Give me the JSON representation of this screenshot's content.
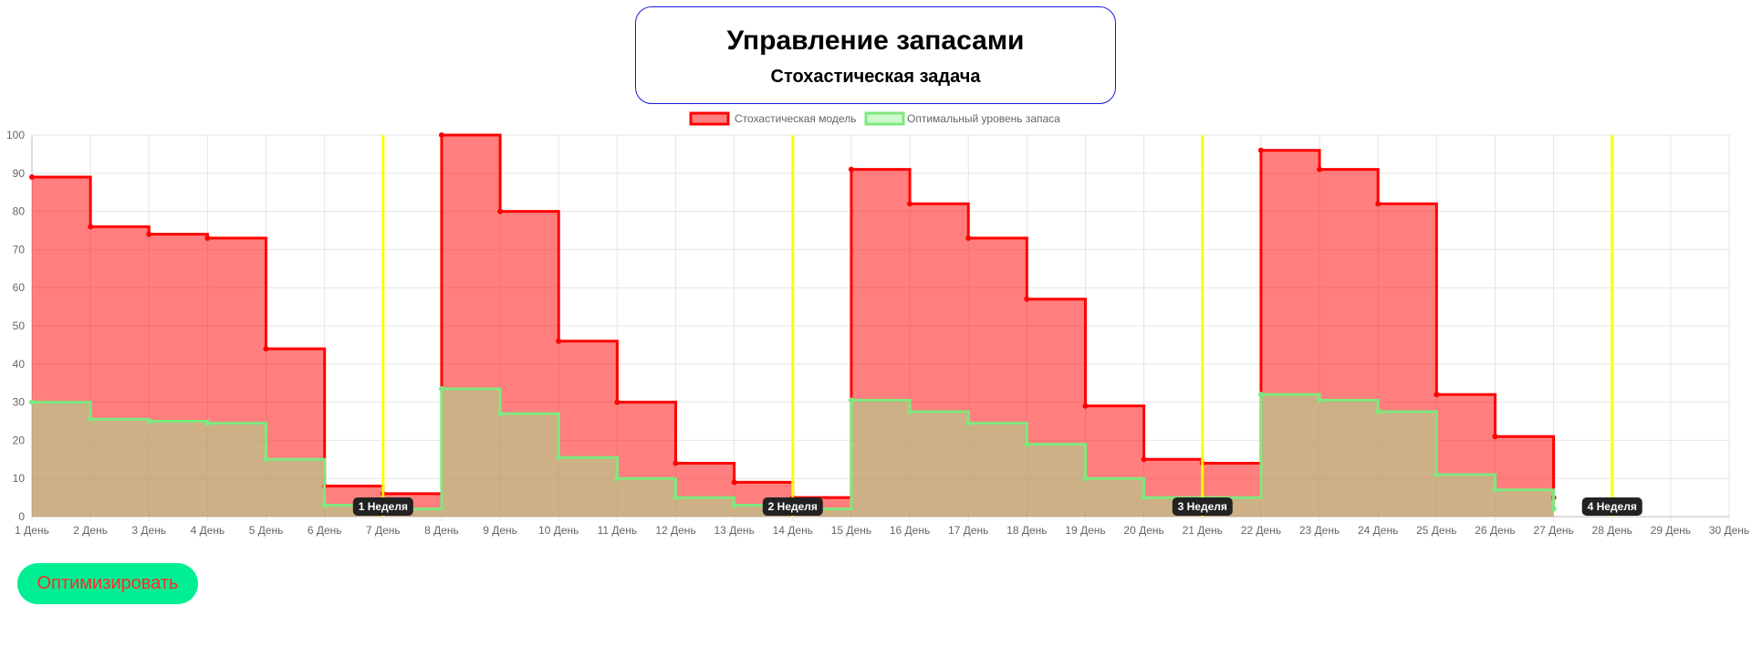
{
  "header": {
    "title": "Управление запасами",
    "subtitle": "Стохастическая задача"
  },
  "button": {
    "label": "Оптимизировать"
  },
  "colors": {
    "stochastic_line": "#ff0000",
    "stochastic_fill": "rgba(255,0,0,0.5)",
    "optimal_line": "#7ee87e",
    "optimal_fill": "rgba(144,238,144,0.45)",
    "week_line": "#ffff00",
    "week_label_bg": "#222222",
    "button_bg": "#00ef93",
    "button_text": "#ff2a2a"
  },
  "chart_data": {
    "type": "line",
    "stepped": true,
    "filled": true,
    "legend_position": "top",
    "grid": true,
    "ylim": [
      0,
      100
    ],
    "y_ticks": [
      0,
      10,
      20,
      30,
      40,
      50,
      60,
      70,
      80,
      90,
      100
    ],
    "categories": [
      "1 День",
      "2 День",
      "3 День",
      "4 День",
      "5 День",
      "6 День",
      "7 День",
      "8 День",
      "9 День",
      "10 День",
      "11 День",
      "12 День",
      "13 День",
      "14 День",
      "15 День",
      "16 День",
      "17 День",
      "18 День",
      "19 День",
      "20 День",
      "21 День",
      "22 День",
      "23 День",
      "24 День",
      "25 День",
      "26 День",
      "27 День",
      "28 День",
      "29 День",
      "30 День"
    ],
    "series": [
      {
        "name": "Стохастическая модель",
        "values": [
          89,
          76,
          74,
          73,
          44,
          8,
          6,
          100,
          80,
          46,
          30,
          14,
          9,
          5,
          91,
          82,
          73,
          57,
          29,
          15,
          14,
          96,
          91,
          82,
          32,
          21,
          5,
          null,
          null,
          null
        ]
      },
      {
        "name": "Оптимальный уровень запаса",
        "values": [
          30,
          25.5,
          25,
          24.5,
          15,
          3,
          2,
          33.5,
          27,
          15.5,
          10,
          5,
          3,
          2,
          30.5,
          27.5,
          24.5,
          19,
          10,
          5,
          5,
          32,
          30.5,
          27.5,
          11,
          7,
          2,
          null,
          null,
          null
        ]
      }
    ],
    "annotations": [
      {
        "label": "1 Неделя",
        "x": "7 День"
      },
      {
        "label": "2 Неделя",
        "x": "14 День"
      },
      {
        "label": "3 Неделя",
        "x": "21 День"
      },
      {
        "label": "4 Неделя",
        "x": "28 День"
      }
    ]
  }
}
